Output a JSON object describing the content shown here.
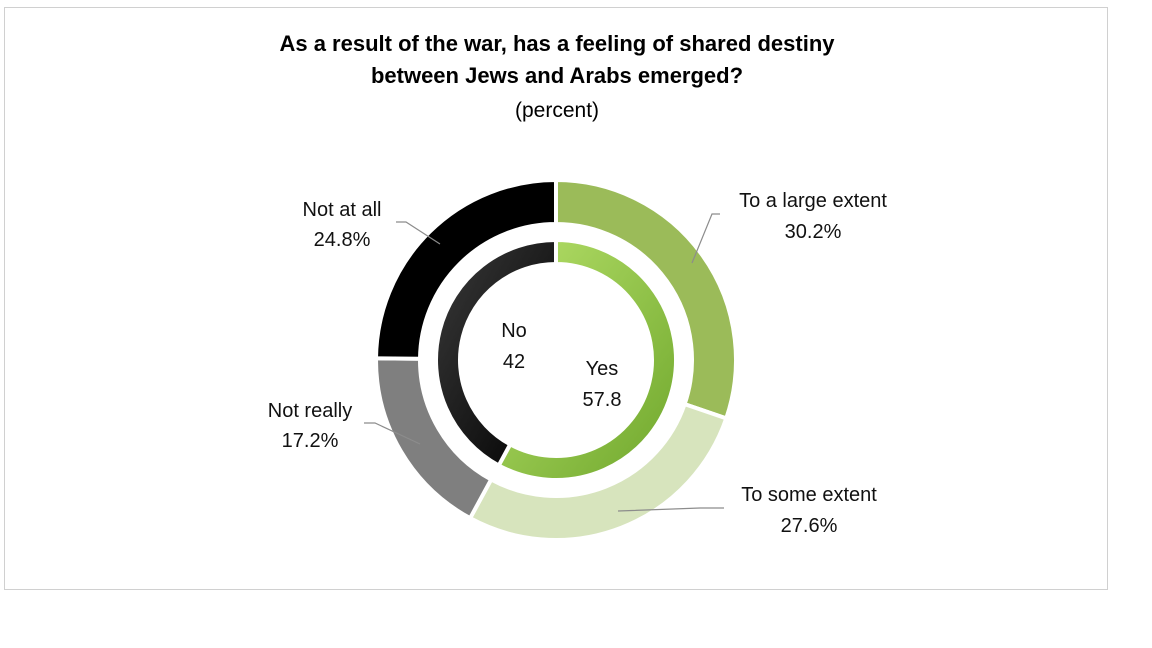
{
  "chart_data": {
    "type": "doughnut",
    "title": "As a result of the war, has a feeling of shared destiny between Jews and Arabs emerged?",
    "title_lines": [
      "As a result of the war, has a feeling of shared destiny",
      "between Jews and Arabs emerged?"
    ],
    "subtitle": "(percent)",
    "outer_ring": [
      {
        "label": "To a large extent",
        "value": 30.2,
        "value_label": "30.2%",
        "color": "#9bbb59"
      },
      {
        "label": "To some extent",
        "value": 27.6,
        "value_label": "27.6%",
        "color": "#d7e4bd"
      },
      {
        "label": "Not really",
        "value": 17.2,
        "value_label": "17.2%",
        "color": "#7f7f7f"
      },
      {
        "label": "Not at all",
        "value": 24.8,
        "value_label": "24.8%",
        "color": "#000000"
      }
    ],
    "inner_ring": [
      {
        "label": "Yes",
        "value": 57.8,
        "value_label": "57.8",
        "color": "#8dc63f"
      },
      {
        "label": "No",
        "value": 42,
        "value_label": "42",
        "color": "#000000"
      }
    ]
  }
}
